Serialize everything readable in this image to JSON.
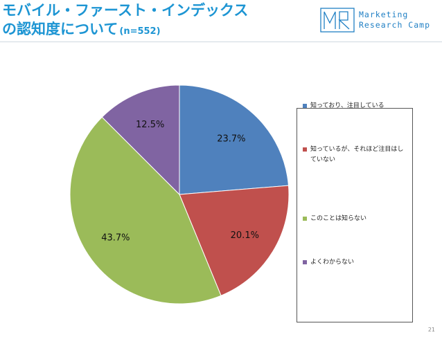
{
  "title": {
    "line1": "モバイル・ファースト・インデックス",
    "line2": "の認知度について",
    "n": "(n=552)"
  },
  "logo": {
    "line1": "Marketing",
    "line2": "Research Camp"
  },
  "page_number": "21",
  "chart_data": {
    "type": "pie",
    "categories": [
      "知っており、注目している",
      "知っているが、それほど注目はしていない",
      "このことは知らない",
      "よくわからない"
    ],
    "values": [
      23.7,
      20.1,
      43.7,
      12.5
    ],
    "labels": [
      "23.7%",
      "20.1%",
      "43.7%",
      "12.5%"
    ],
    "colors": [
      "#4f81bd",
      "#c0504d",
      "#9bbb59",
      "#8064a2"
    ],
    "start_angle_deg": 0,
    "direction": "clockwise",
    "legend_position": "right"
  }
}
